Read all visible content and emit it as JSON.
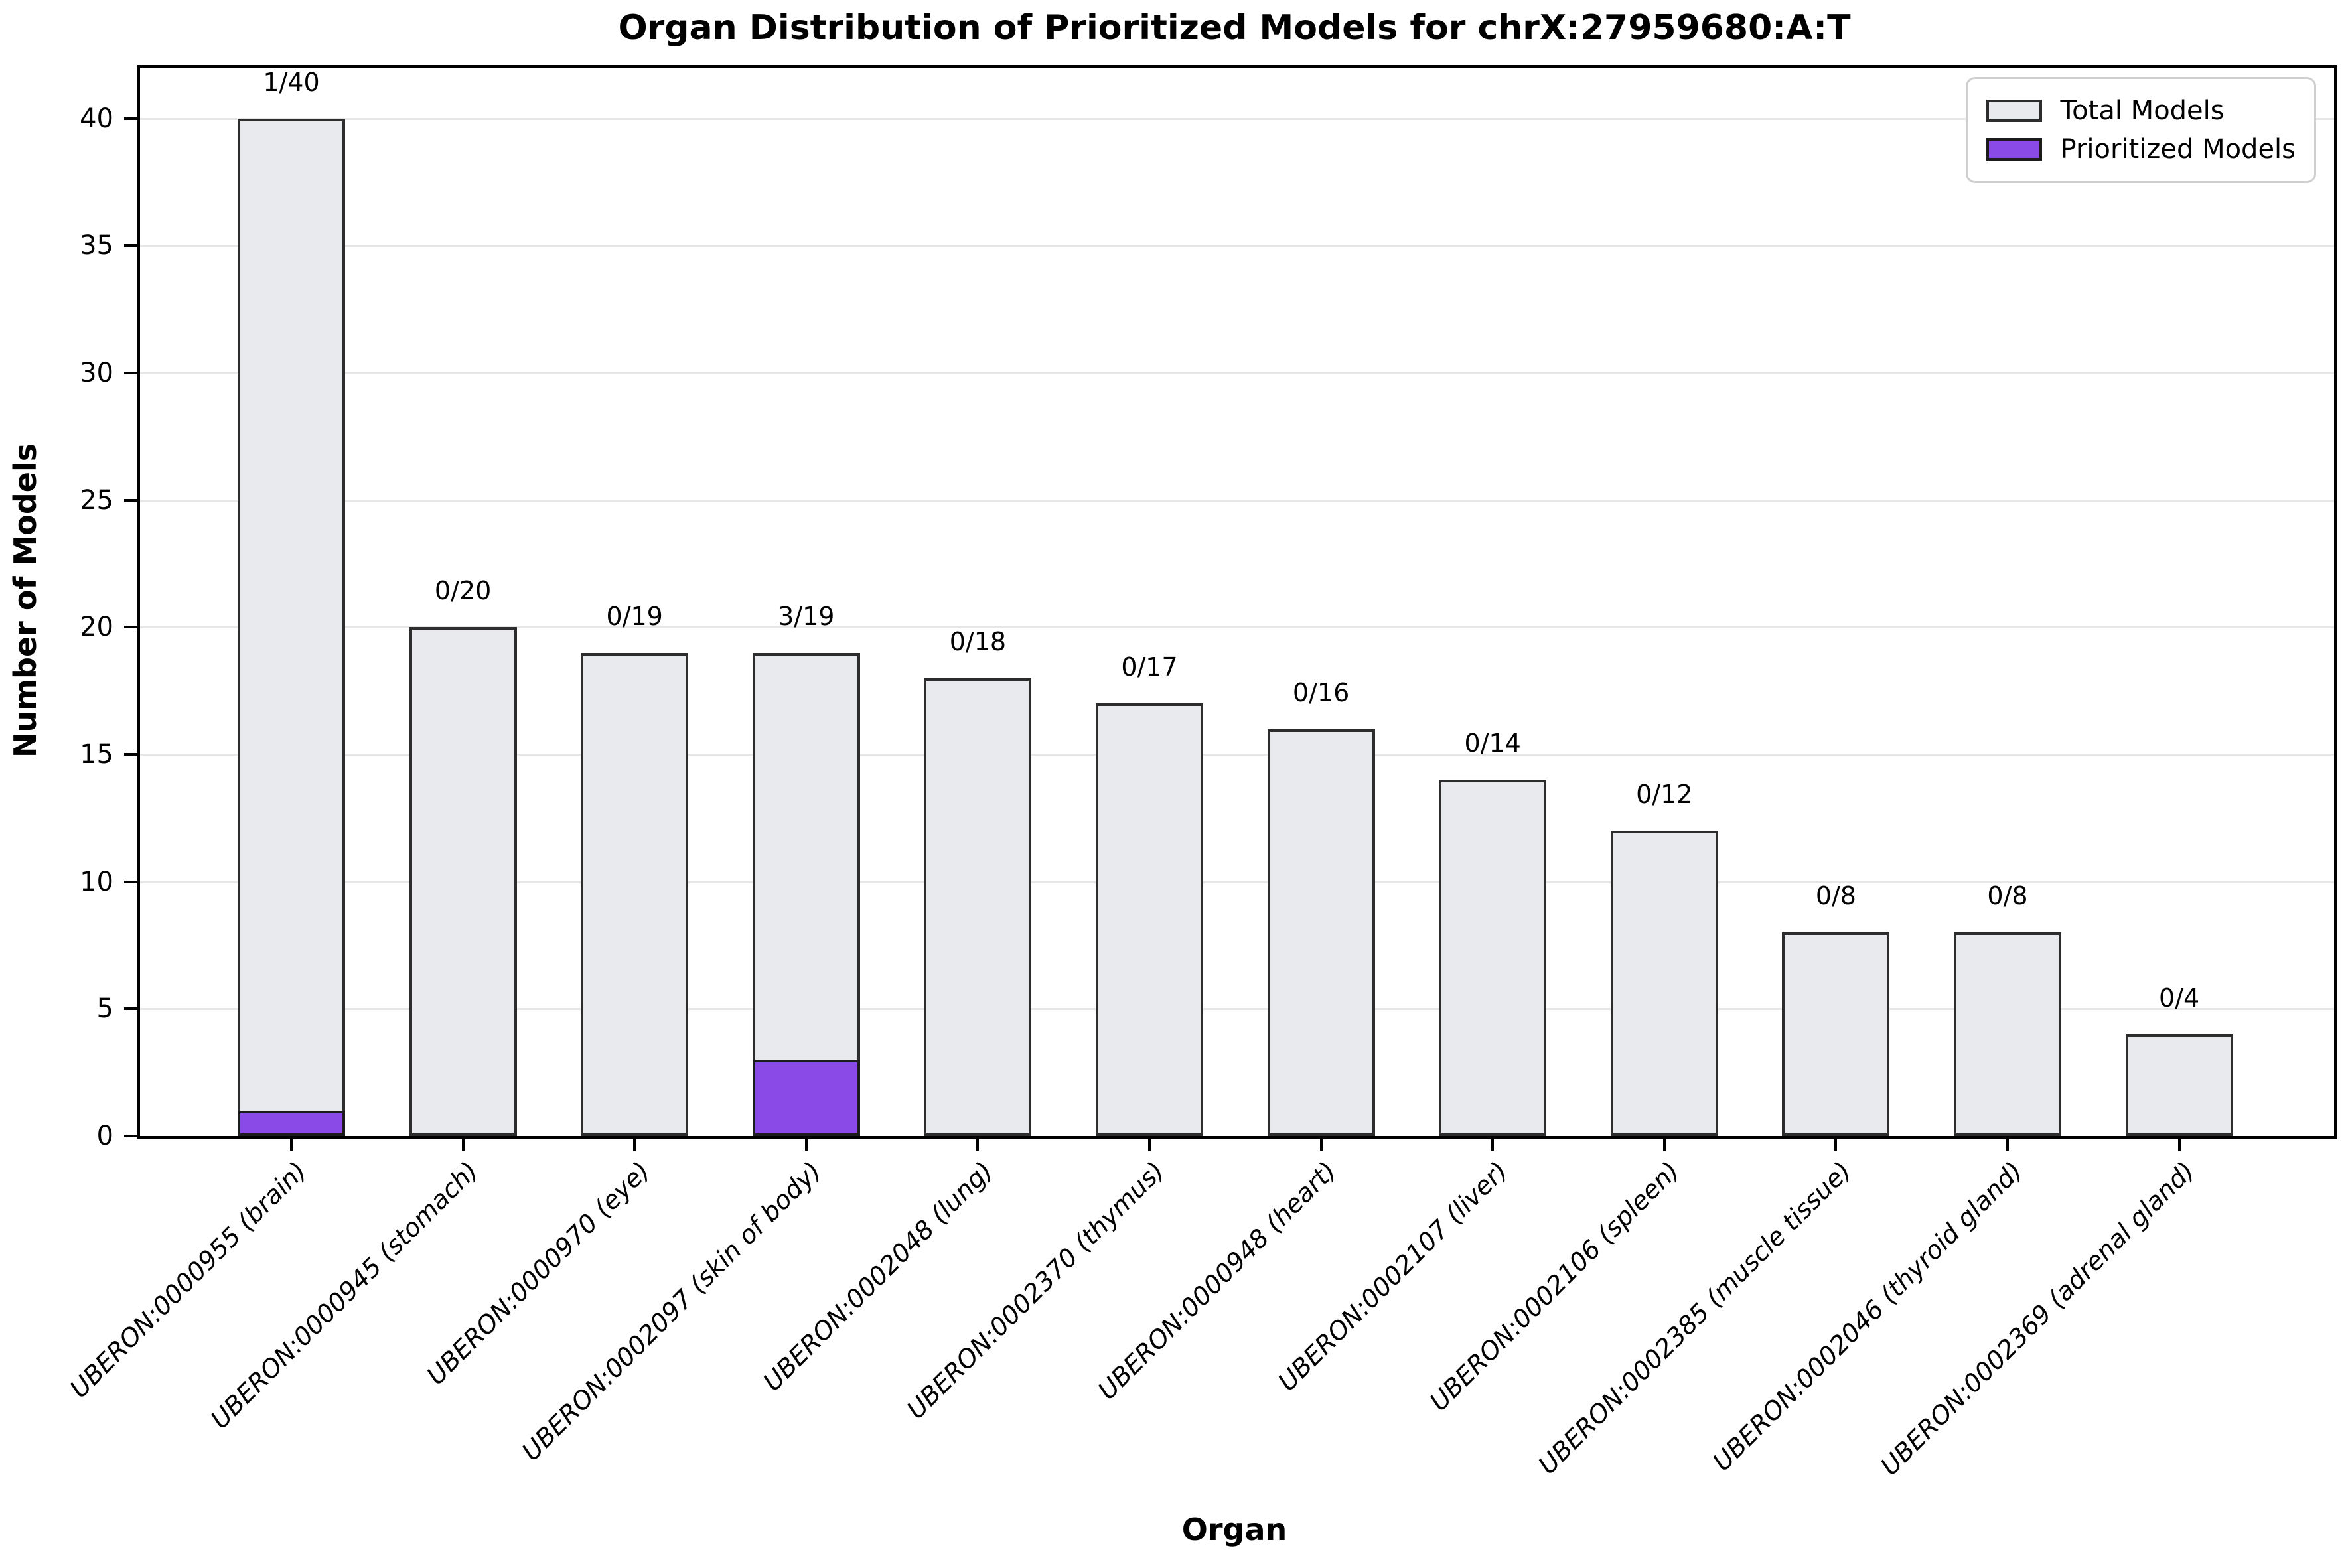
{
  "title": "Organ Distribution of Prioritized Models for chrX:27959680:A:T",
  "legend": {
    "total_label": "Total Models",
    "prioritized_label": "Prioritized Models"
  },
  "axes": {
    "xlabel": "Organ",
    "ylabel": "Number of Models"
  },
  "colors": {
    "total_fill": "#e9eaee",
    "total_edge": "#2d2d2d",
    "prioritized_fill": "#8a4ae8",
    "prioritized_edge": "#1c1c1c",
    "grid": "#e6e6e6",
    "spine": "#000000",
    "background": "#ffffff"
  },
  "chart_data": {
    "type": "bar",
    "title": "Organ Distribution of Prioritized Models for chrX:27959680:A:T",
    "xlabel": "Organ",
    "ylabel": "Number of Models",
    "ylim": [
      0,
      42
    ],
    "yticks": [
      0,
      5,
      10,
      15,
      20,
      25,
      30,
      35,
      40
    ],
    "grid": "horizontal",
    "legend_position": "upper right",
    "categories": [
      "UBERON:0000955 (brain)",
      "UBERON:0000945 (stomach)",
      "UBERON:0000970 (eye)",
      "UBERON:0002097 (skin of body)",
      "UBERON:0002048 (lung)",
      "UBERON:0002370 (thymus)",
      "UBERON:0000948 (heart)",
      "UBERON:0002107 (liver)",
      "UBERON:0002106 (spleen)",
      "UBERON:0002385 (muscle tissue)",
      "UBERON:0002046 (thyroid gland)",
      "UBERON:0002369 (adrenal gland)"
    ],
    "series": [
      {
        "name": "Total Models",
        "color": "#e9eaee",
        "values": [
          40,
          20,
          19,
          19,
          18,
          17,
          16,
          14,
          12,
          8,
          8,
          4
        ]
      },
      {
        "name": "Prioritized Models",
        "color": "#8a4ae8",
        "values": [
          1,
          0,
          0,
          3,
          0,
          0,
          0,
          0,
          0,
          0,
          0,
          0
        ]
      }
    ],
    "bar_annotations": [
      "1/40",
      "0/20",
      "0/19",
      "3/19",
      "0/18",
      "0/17",
      "0/16",
      "0/14",
      "0/12",
      "0/8",
      "0/8",
      "0/4"
    ]
  }
}
